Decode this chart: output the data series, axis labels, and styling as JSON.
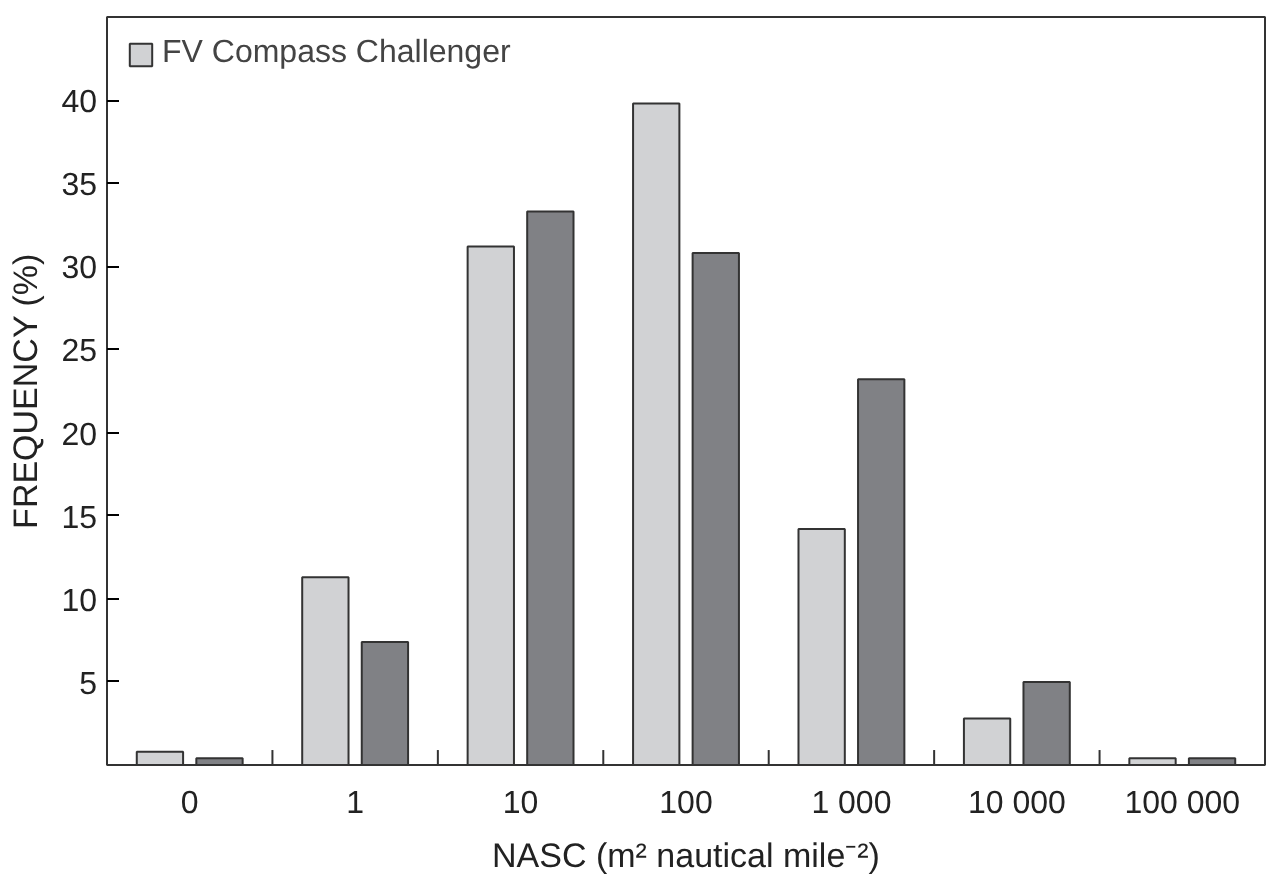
{
  "chart_data": {
    "type": "bar",
    "xlabel": "NASC (m² nautical mile⁻²)",
    "ylabel": "FREQUENCY (%)",
    "categories": [
      "0",
      "1",
      "10",
      "100",
      "1 000",
      "10 000",
      "100 000"
    ],
    "series": [
      {
        "name": "FV Compass Challenger",
        "color": "#d1d2d4",
        "values": [
          0.8,
          11.3,
          31.2,
          39.8,
          14.2,
          2.8,
          0.4
        ]
      },
      {
        "color": "#808185",
        "values": [
          0.4,
          7.4,
          33.3,
          30.8,
          23.2,
          5.0,
          0.4
        ]
      }
    ],
    "ylim": [
      0,
      45
    ],
    "yticks": [
      5,
      10,
      15,
      20,
      25,
      30,
      35,
      40
    ],
    "grid": false,
    "legend": "top left"
  }
}
